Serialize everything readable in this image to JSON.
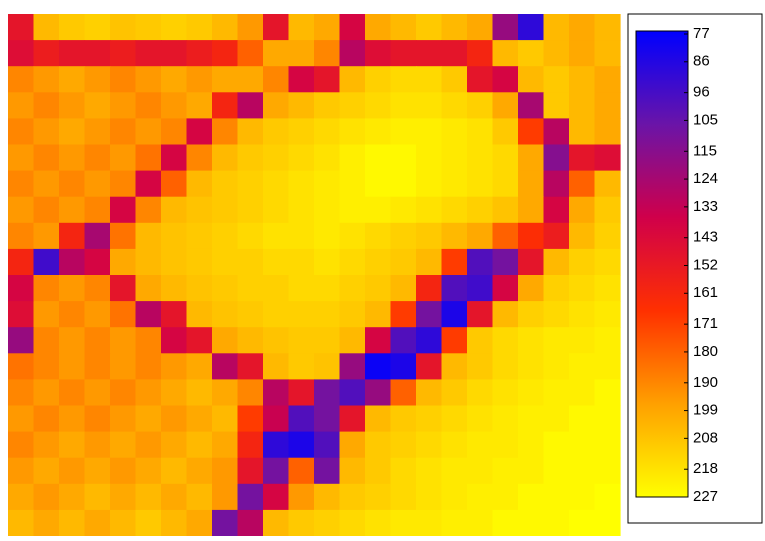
{
  "chart_data": {
    "type": "heatmap",
    "zlim": [
      77,
      227
    ],
    "colors": [
      "#0000ff",
      "#6a14a8",
      "#d0004a",
      "#ff3000",
      "#ffa000",
      "#ffff00"
    ],
    "colorbar_ticks": [
      77,
      86,
      96,
      105,
      115,
      124,
      133,
      143,
      152,
      161,
      171,
      180,
      190,
      199,
      208,
      218,
      227
    ],
    "z": [
      [
        150,
        205,
        210,
        212,
        208,
        210,
        212,
        210,
        205,
        195,
        150,
        205,
        200,
        140,
        200,
        205,
        210,
        205,
        200,
        120,
        90,
        205,
        200,
        205
      ],
      [
        145,
        155,
        150,
        150,
        155,
        150,
        150,
        155,
        160,
        180,
        200,
        200,
        190,
        130,
        145,
        150,
        150,
        150,
        160,
        205,
        210,
        205,
        200,
        205
      ],
      [
        190,
        195,
        200,
        195,
        190,
        195,
        200,
        195,
        200,
        200,
        190,
        140,
        150,
        205,
        212,
        215,
        215,
        210,
        150,
        140,
        205,
        210,
        205,
        200
      ],
      [
        195,
        190,
        195,
        200,
        195,
        190,
        195,
        200,
        160,
        130,
        200,
        205,
        210,
        212,
        215,
        218,
        218,
        215,
        212,
        200,
        125,
        210,
        205,
        200
      ],
      [
        190,
        195,
        200,
        195,
        190,
        195,
        190,
        140,
        190,
        205,
        210,
        212,
        215,
        218,
        220,
        222,
        222,
        220,
        218,
        210,
        170,
        130,
        205,
        200
      ],
      [
        195,
        190,
        195,
        190,
        195,
        185,
        140,
        190,
        205,
        210,
        212,
        215,
        218,
        222,
        225,
        225,
        222,
        220,
        218,
        215,
        200,
        115,
        150,
        145
      ],
      [
        190,
        195,
        190,
        195,
        190,
        140,
        180,
        205,
        210,
        212,
        215,
        218,
        220,
        222,
        225,
        225,
        222,
        220,
        218,
        215,
        200,
        130,
        180,
        205
      ],
      [
        195,
        190,
        195,
        190,
        140,
        190,
        205,
        208,
        210,
        212,
        215,
        218,
        220,
        222,
        222,
        220,
        218,
        215,
        212,
        208,
        200,
        140,
        200,
        210
      ],
      [
        190,
        195,
        160,
        125,
        185,
        205,
        208,
        210,
        212,
        215,
        218,
        218,
        220,
        218,
        215,
        212,
        210,
        205,
        200,
        180,
        165,
        155,
        205,
        212
      ],
      [
        160,
        95,
        130,
        140,
        200,
        205,
        208,
        210,
        212,
        212,
        215,
        215,
        218,
        215,
        212,
        210,
        205,
        170,
        100,
        110,
        150,
        205,
        212,
        215
      ],
      [
        140,
        190,
        195,
        190,
        150,
        200,
        205,
        208,
        210,
        212,
        212,
        215,
        215,
        212,
        210,
        205,
        160,
        100,
        95,
        140,
        200,
        212,
        215,
        218
      ],
      [
        145,
        195,
        190,
        195,
        185,
        130,
        150,
        205,
        208,
        210,
        212,
        212,
        212,
        210,
        205,
        170,
        110,
        85,
        150,
        205,
        212,
        215,
        218,
        220
      ],
      [
        120,
        190,
        195,
        190,
        195,
        190,
        140,
        150,
        200,
        205,
        208,
        210,
        210,
        205,
        140,
        100,
        90,
        170,
        210,
        215,
        218,
        220,
        220,
        222
      ],
      [
        185,
        190,
        195,
        190,
        195,
        190,
        195,
        200,
        130,
        150,
        205,
        210,
        208,
        120,
        80,
        85,
        150,
        205,
        210,
        215,
        218,
        220,
        222,
        222
      ],
      [
        190,
        195,
        190,
        195,
        190,
        195,
        200,
        205,
        200,
        190,
        130,
        150,
        110,
        100,
        120,
        180,
        205,
        210,
        215,
        218,
        220,
        222,
        222,
        225
      ],
      [
        195,
        190,
        195,
        190,
        195,
        200,
        195,
        200,
        205,
        170,
        135,
        100,
        110,
        150,
        205,
        210,
        212,
        215,
        218,
        220,
        222,
        222,
        225,
        225
      ],
      [
        190,
        195,
        200,
        195,
        200,
        195,
        200,
        205,
        200,
        160,
        90,
        85,
        100,
        200,
        210,
        212,
        215,
        218,
        220,
        220,
        222,
        225,
        225,
        225
      ],
      [
        195,
        200,
        195,
        200,
        195,
        200,
        205,
        200,
        195,
        150,
        110,
        180,
        110,
        205,
        210,
        215,
        218,
        220,
        220,
        222,
        222,
        225,
        225,
        225
      ],
      [
        200,
        195,
        200,
        205,
        200,
        205,
        200,
        205,
        195,
        110,
        140,
        195,
        205,
        210,
        212,
        215,
        218,
        220,
        222,
        222,
        225,
        225,
        225,
        227
      ],
      [
        205,
        200,
        205,
        200,
        205,
        210,
        205,
        200,
        110,
        130,
        205,
        210,
        212,
        215,
        218,
        220,
        220,
        222,
        222,
        225,
        225,
        225,
        227,
        227
      ]
    ]
  }
}
